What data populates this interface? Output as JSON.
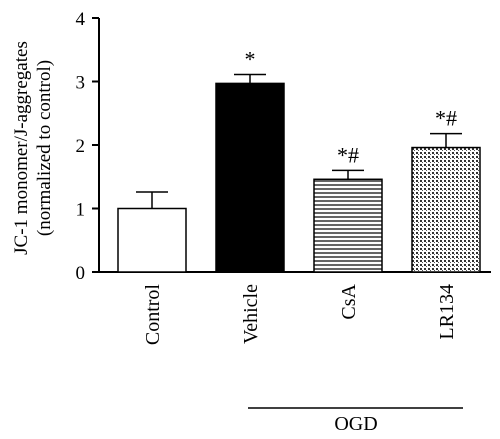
{
  "chart_data": {
    "type": "bar",
    "categories": [
      "Control",
      "Vehicle",
      "CsA",
      "LR134"
    ],
    "values": [
      1.0,
      2.97,
      1.46,
      1.96
    ],
    "errors": [
      0.26,
      0.14,
      0.14,
      0.22
    ],
    "annotations": [
      "",
      "*",
      "*#",
      "*#"
    ],
    "fills": [
      "white",
      "black",
      "horizontal-lines",
      "grid-pattern"
    ],
    "ylim": [
      0,
      4
    ],
    "yticks": [
      0,
      1,
      2,
      3,
      4
    ],
    "ylabel_line1": "JC-1 monomer/J-aggregates",
    "ylabel_line2": "(normalized to control)",
    "group_label": "OGD",
    "group_spans": [
      "Vehicle",
      "LR134"
    ],
    "grid": false
  }
}
